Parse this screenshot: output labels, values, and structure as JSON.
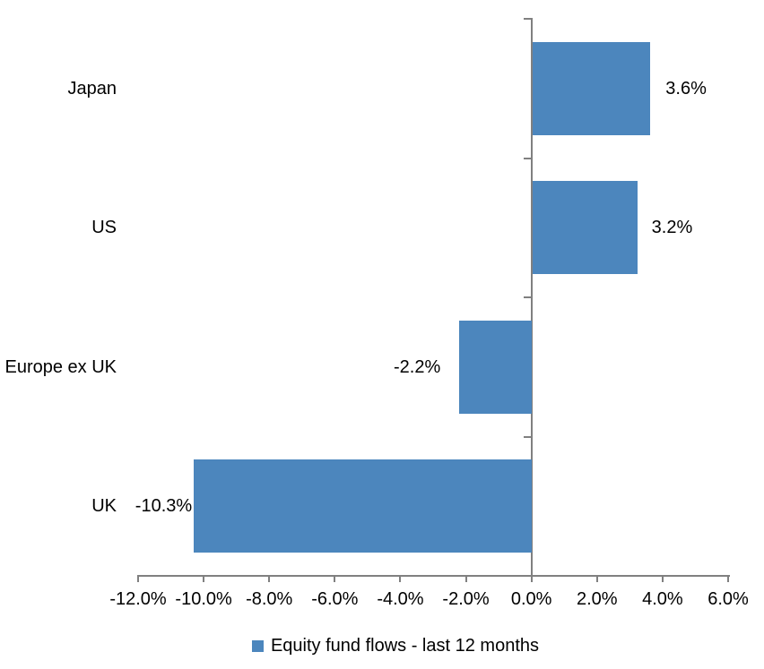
{
  "chart_data": {
    "type": "bar",
    "orientation": "horizontal",
    "title": "",
    "xlabel": "",
    "ylabel": "",
    "categories": [
      "Japan",
      "US",
      "Europe ex UK",
      "UK"
    ],
    "series": [
      {
        "name": "Equity fund flows - last 12 months",
        "values": [
          3.6,
          3.2,
          -2.2,
          -10.3
        ],
        "value_labels": [
          "3.6%",
          "3.2%",
          "-2.2%",
          "-10.3%"
        ]
      }
    ],
    "xlim": [
      -12,
      6
    ],
    "x_ticks": [
      {
        "value": -12,
        "label": "-12.0%"
      },
      {
        "value": -10,
        "label": "-10.0%"
      },
      {
        "value": -8,
        "label": "-8.0%"
      },
      {
        "value": -6,
        "label": "-6.0%"
      },
      {
        "value": -4,
        "label": "-4.0%"
      },
      {
        "value": -2,
        "label": "-2.0%"
      },
      {
        "value": 0,
        "label": "0.0%"
      },
      {
        "value": 2,
        "label": "2.0%"
      },
      {
        "value": 4,
        "label": "4.0%"
      },
      {
        "value": 6,
        "label": "6.0%"
      }
    ],
    "grid": false,
    "legend_position": "bottom",
    "bar_color": "#4C86BD",
    "axis_color": "#808080",
    "text_color": "#000000"
  }
}
